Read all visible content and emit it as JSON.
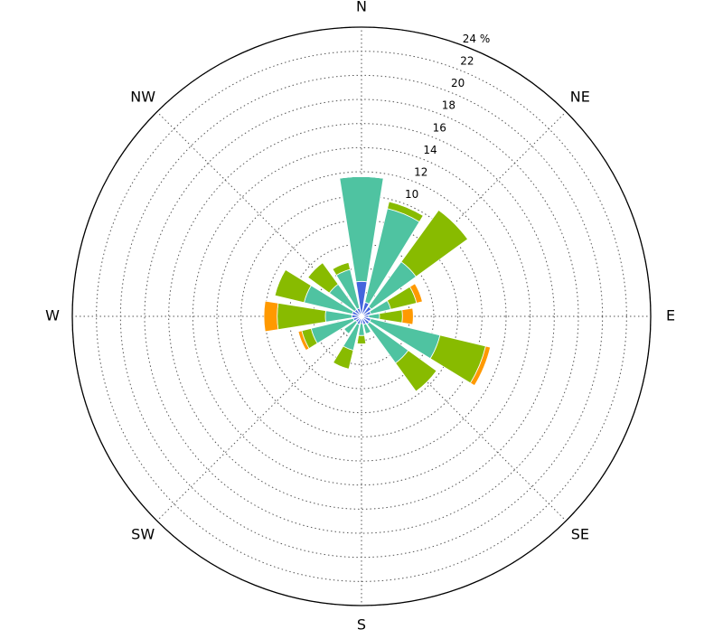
{
  "chart_data": {
    "type": "windrose",
    "categories": [
      "N",
      null,
      "NE",
      null,
      "E",
      null,
      "SE",
      null,
      "S",
      null,
      "SW",
      null,
      "W",
      null,
      "NW",
      null
    ],
    "series": [
      {
        "color": "#4466dd",
        "values": [
          2.9,
          1.2,
          1.0,
          0.8,
          0.6,
          0.8,
          0.8,
          0.7,
          0.6,
          0.7,
          0.6,
          0.7,
          0.8,
          0.8,
          0.7,
          0.7
        ]
      },
      {
        "color": "#4fc3a1",
        "values": [
          8.7,
          8.0,
          4.6,
          1.7,
          0.9,
          5.9,
          4.0,
          0.8,
          1.0,
          2.2,
          1.2,
          3.6,
          2.2,
          4.1,
          2.6,
          3.3
        ]
      },
      {
        "color": "#88bb00",
        "values": [
          0,
          0.6,
          5.3,
          2.2,
          1.9,
          3.9,
          2.9,
          0,
          0.7,
          1.6,
          0,
          0.8,
          4.0,
          2.5,
          2.2,
          0.6
        ]
      },
      {
        "color": "#ff9900",
        "values": [
          0,
          0,
          0,
          0.5,
          0.9,
          0.4,
          0,
          0,
          0,
          0,
          0,
          0.3,
          1.1,
          0,
          0,
          0
        ]
      }
    ],
    "ylim": [
      0,
      24
    ],
    "yticks": [
      2,
      4,
      6,
      8,
      10,
      12,
      14,
      16,
      18,
      20,
      22,
      {
        "value": 24,
        "label": "24 %"
      }
    ],
    "grid": true
  }
}
